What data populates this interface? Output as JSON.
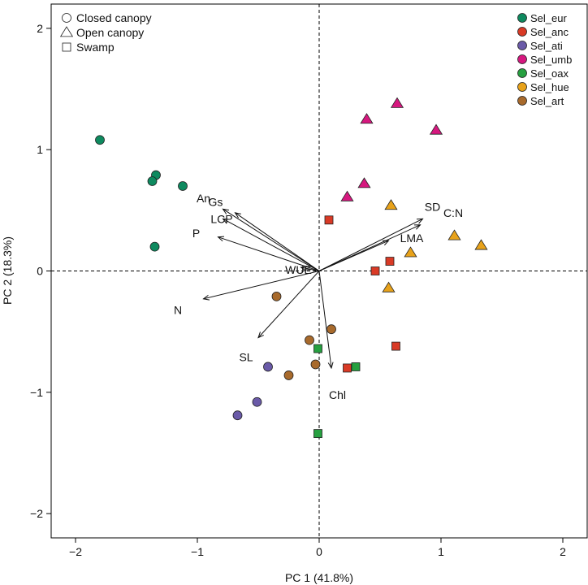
{
  "chart_data": {
    "type": "scatter",
    "title": "",
    "xlabel": "PC 1 (41.8%)",
    "ylabel": "PC 2 (18.3%)",
    "xlim": [
      -2.2,
      2.2
    ],
    "ylim": [
      -2.2,
      2.2
    ],
    "xticks": [
      -2,
      -1,
      0,
      1,
      2
    ],
    "yticks": [
      -2,
      -1,
      0,
      1,
      2
    ],
    "grid": false,
    "reference_lines": [
      "x=0",
      "y=0"
    ],
    "shape_legend": {
      "placement": "top-left",
      "items": [
        {
          "shape": "circle",
          "label": "Closed canopy"
        },
        {
          "shape": "triangle",
          "label": "Open canopy"
        },
        {
          "shape": "square",
          "label": "Swamp"
        }
      ]
    },
    "color_legend": {
      "placement": "top-right",
      "items": [
        {
          "label": "Sel_eur",
          "color": "#0e8a5f"
        },
        {
          "label": "Sel_anc",
          "color": "#d93a26"
        },
        {
          "label": "Sel_ati",
          "color": "#6a5aa8"
        },
        {
          "label": "Sel_umb",
          "color": "#d6187f"
        },
        {
          "label": "Sel_oax",
          "color": "#26a040"
        },
        {
          "label": "Sel_hue",
          "color": "#e8a21a"
        },
        {
          "label": "Sel_art",
          "color": "#a86a2c"
        }
      ]
    },
    "series": [
      {
        "name": "Sel_eur",
        "color": "#0e8a5f",
        "shape": "circle",
        "points": [
          [
            -1.8,
            1.08
          ],
          [
            -1.34,
            0.79
          ],
          [
            -1.37,
            0.74
          ],
          [
            -1.12,
            0.7
          ],
          [
            -1.35,
            0.2
          ]
        ]
      },
      {
        "name": "Sel_anc",
        "color": "#d93a26",
        "shape": "square",
        "points": [
          [
            0.08,
            0.42
          ],
          [
            0.46,
            0.0
          ],
          [
            0.58,
            0.08
          ],
          [
            0.63,
            -0.62
          ],
          [
            0.23,
            -0.8
          ]
        ]
      },
      {
        "name": "Sel_ati",
        "color": "#6a5aa8",
        "shape": "circle",
        "points": [
          [
            -0.42,
            -0.79
          ],
          [
            -0.51,
            -1.08
          ],
          [
            -0.67,
            -1.19
          ]
        ]
      },
      {
        "name": "Sel_umb",
        "color": "#d6187f",
        "shape": "triangle",
        "points": [
          [
            0.64,
            1.38
          ],
          [
            0.39,
            1.25
          ],
          [
            0.96,
            1.16
          ],
          [
            0.37,
            0.72
          ],
          [
            0.23,
            0.61
          ]
        ]
      },
      {
        "name": "Sel_oax",
        "color": "#26a040",
        "shape": "square",
        "points": [
          [
            -0.01,
            -0.64
          ],
          [
            0.3,
            -0.79
          ],
          [
            -0.01,
            -1.34
          ]
        ]
      },
      {
        "name": "Sel_hue",
        "color": "#e8a21a",
        "shape": "triangle",
        "points": [
          [
            0.59,
            0.54
          ],
          [
            1.11,
            0.29
          ],
          [
            1.33,
            0.21
          ],
          [
            0.75,
            0.15
          ],
          [
            0.57,
            -0.14
          ]
        ]
      },
      {
        "name": "Sel_art",
        "color": "#a86a2c",
        "shape": "circle",
        "points": [
          [
            -0.35,
            -0.21
          ],
          [
            0.1,
            -0.48
          ],
          [
            -0.08,
            -0.57
          ],
          [
            -0.03,
            -0.77
          ],
          [
            -0.25,
            -0.86
          ]
        ]
      }
    ],
    "loadings": [
      {
        "label": "An",
        "end": [
          -0.79,
          0.51
        ],
        "label_pos": [
          -0.95,
          0.6
        ]
      },
      {
        "label": "Gs",
        "end": [
          -0.69,
          0.48
        ],
        "label_pos": [
          -0.85,
          0.57
        ]
      },
      {
        "label": "LCP",
        "end": [
          -0.79,
          0.43
        ],
        "label_pos": [
          -0.8,
          0.43
        ]
      },
      {
        "label": "P",
        "end": [
          -0.83,
          0.28
        ],
        "label_pos": [
          -1.01,
          0.31
        ]
      },
      {
        "label": "WUE",
        "end": [
          -0.15,
          0.03
        ],
        "label_pos": [
          -0.17,
          0.01
        ]
      },
      {
        "label": "N",
        "end": [
          -0.95,
          -0.23
        ],
        "label_pos": [
          -1.16,
          -0.32
        ]
      },
      {
        "label": "SL",
        "end": [
          -0.5,
          -0.55
        ],
        "label_pos": [
          -0.6,
          -0.71
        ]
      },
      {
        "label": "Chl",
        "end": [
          0.1,
          -0.8
        ],
        "label_pos": [
          0.15,
          -1.02
        ]
      },
      {
        "label": "SD",
        "end": [
          0.85,
          0.43
        ],
        "label_pos": [
          0.93,
          0.53
        ]
      },
      {
        "label": "C:N",
        "end": [
          0.83,
          0.38
        ],
        "label_pos": [
          1.1,
          0.48
        ]
      },
      {
        "label": "LMA",
        "end": [
          0.57,
          0.25
        ],
        "label_pos": [
          0.76,
          0.27
        ]
      }
    ]
  }
}
